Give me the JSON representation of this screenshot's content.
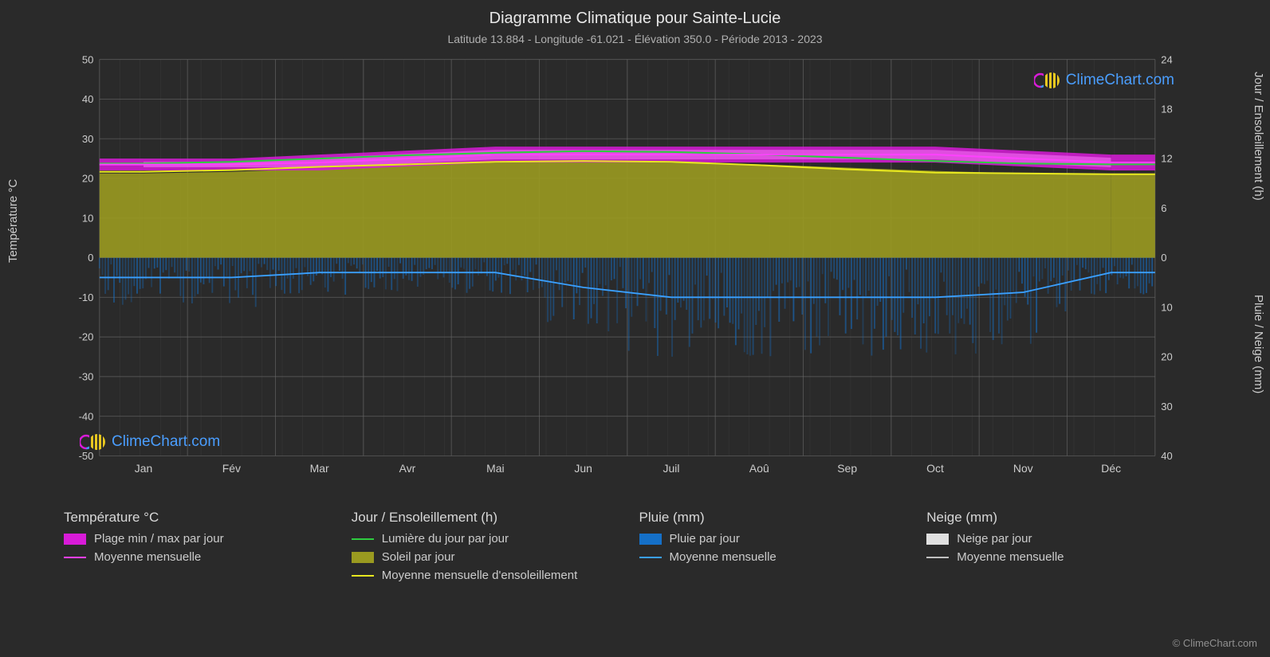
{
  "title": "Diagramme Climatique pour Sainte-Lucie",
  "subtitle": "Latitude 13.884 - Longitude -61.021 - Élévation 350.0 - Période 2013 - 2023",
  "axes": {
    "left_label": "Température °C",
    "right_top_label": "Jour / Ensoleillement (h)",
    "right_bottom_label": "Pluie / Neige (mm)",
    "left_ticks": [
      -50,
      -40,
      -30,
      -20,
      -10,
      0,
      10,
      20,
      30,
      40,
      50
    ],
    "left_min": -50,
    "left_max": 50,
    "right_top_ticks": [
      0,
      6,
      12,
      18,
      24
    ],
    "right_top_min": 0,
    "right_top_max": 24,
    "right_bottom_ticks": [
      0,
      10,
      20,
      30,
      40
    ],
    "right_bottom_min": 0,
    "right_bottom_max": 40,
    "months": [
      "Jan",
      "Fév",
      "Mar",
      "Avr",
      "Mai",
      "Jun",
      "Juil",
      "Aoû",
      "Sep",
      "Oct",
      "Nov",
      "Déc"
    ]
  },
  "colors": {
    "background": "#2a2a2a",
    "grid": "#666666",
    "grid_minor": "#4a4a4a",
    "text": "#cccccc",
    "temp_range": "#d81bd8",
    "temp_range_inner": "#ff7fff",
    "temp_avg_line": "#ff40ff",
    "daylight_line": "#2ecc40",
    "sun_fill": "#9a9a20",
    "sun_avg_line": "#e8e820",
    "rain_bars": "#1570c8",
    "rain_avg_line": "#3aa0ff",
    "snow_bars": "#e0e0e0",
    "snow_avg_line": "#c0c0c0"
  },
  "series": {
    "temp_min": [
      22,
      22,
      22,
      23,
      24,
      24,
      24,
      24,
      24,
      24,
      23,
      22
    ],
    "temp_max": [
      25,
      25,
      26,
      27,
      28,
      28,
      28,
      28,
      28,
      28,
      27,
      26
    ],
    "temp_avg": [
      23.5,
      23.5,
      24,
      25,
      26,
      26,
      26,
      26,
      26,
      26,
      25,
      24
    ],
    "daylight_h": [
      11.4,
      11.6,
      12.0,
      12.4,
      12.7,
      12.9,
      12.8,
      12.5,
      12.1,
      11.7,
      11.4,
      11.3
    ],
    "sun_h": [
      10.2,
      10.4,
      10.8,
      11.2,
      11.5,
      11.6,
      11.5,
      11.3,
      10.9,
      10.5,
      10.2,
      10.0
    ],
    "sun_avg_h": [
      10.4,
      10.6,
      11.0,
      11.3,
      11.6,
      11.7,
      11.6,
      11.2,
      10.7,
      10.3,
      10.2,
      10.1
    ],
    "rain_avg_mm": [
      4,
      4,
      3,
      3,
      3,
      6,
      8,
      8,
      8,
      8,
      7,
      3
    ]
  },
  "legend": {
    "group1_title": "Température °C",
    "group1_items": [
      {
        "type": "swatch",
        "color": "#d81bd8",
        "label": "Plage min / max par jour"
      },
      {
        "type": "line",
        "color": "#ff40ff",
        "label": "Moyenne mensuelle"
      }
    ],
    "group2_title": "Jour / Ensoleillement (h)",
    "group2_items": [
      {
        "type": "line",
        "color": "#2ecc40",
        "label": "Lumière du jour par jour"
      },
      {
        "type": "swatch",
        "color": "#9a9a20",
        "label": "Soleil par jour"
      },
      {
        "type": "line",
        "color": "#e8e820",
        "label": "Moyenne mensuelle d'ensoleillement"
      }
    ],
    "group3_title": "Pluie (mm)",
    "group3_items": [
      {
        "type": "swatch",
        "color": "#1570c8",
        "label": "Pluie par jour"
      },
      {
        "type": "line",
        "color": "#3aa0ff",
        "label": "Moyenne mensuelle"
      }
    ],
    "group4_title": "Neige (mm)",
    "group4_items": [
      {
        "type": "swatch",
        "color": "#e0e0e0",
        "label": "Neige par jour"
      },
      {
        "type": "line",
        "color": "#c0c0c0",
        "label": "Moyenne mensuelle"
      }
    ]
  },
  "watermark_text": "ClimeChart.com",
  "copyright": "© ClimeChart.com"
}
